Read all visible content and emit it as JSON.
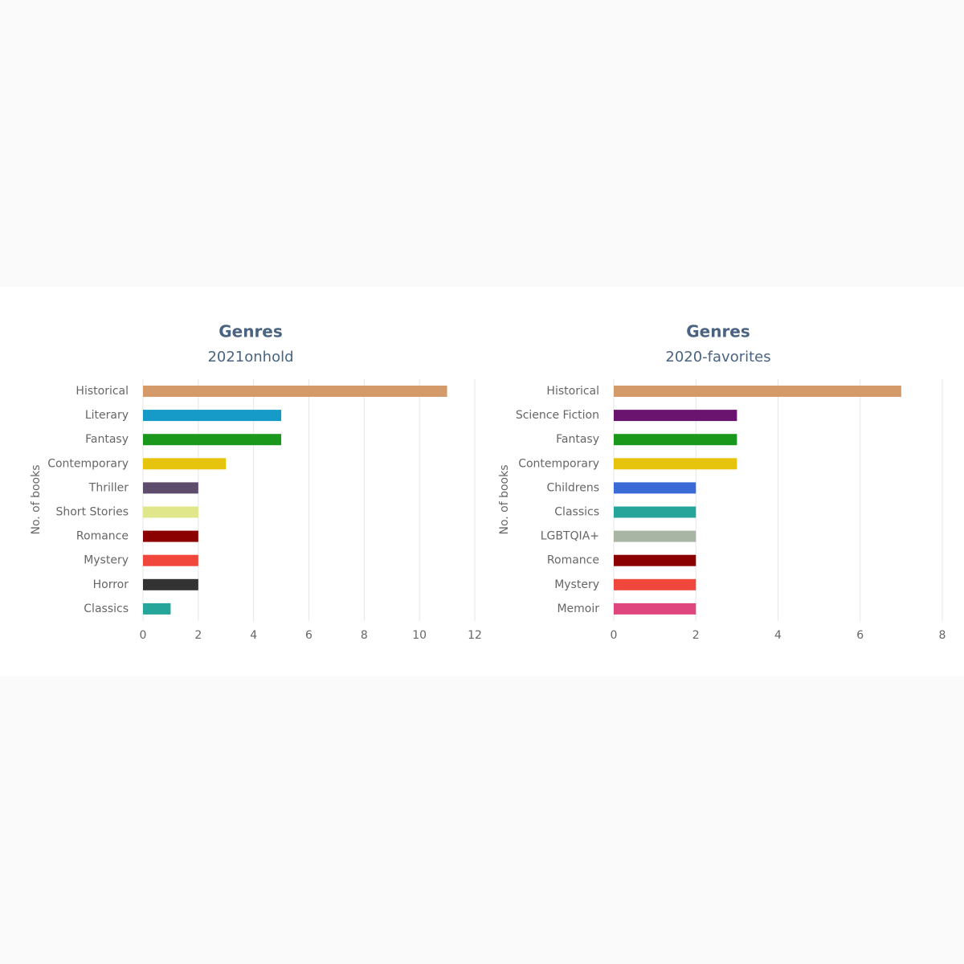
{
  "chart_data": [
    {
      "type": "bar",
      "orientation": "horizontal",
      "title": "Genres",
      "subtitle": "2021onhold",
      "y_label": "No. of books",
      "categories": [
        "Historical",
        "Literary",
        "Fantasy",
        "Contemporary",
        "Thriller",
        "Short Stories",
        "Romance",
        "Mystery",
        "Horror",
        "Classics"
      ],
      "values": [
        11,
        5,
        5,
        3,
        2,
        2,
        2,
        2,
        2,
        1
      ],
      "colors": [
        "#d49a6a",
        "#169bc8",
        "#1a981c",
        "#e6c30c",
        "#5e4c6c",
        "#e0e68a",
        "#8b0000",
        "#f0463c",
        "#333333",
        "#26a69a"
      ],
      "xlim": [
        0,
        12
      ],
      "xticks": [
        0,
        2,
        4,
        6,
        8,
        10,
        12
      ],
      "grid": true
    },
    {
      "type": "bar",
      "orientation": "horizontal",
      "title": "Genres",
      "subtitle": "2020-favorites",
      "y_label": "No. of books",
      "categories": [
        "Historical",
        "Science Fiction",
        "Fantasy",
        "Contemporary",
        "Childrens",
        "Classics",
        "LGBTQIA+",
        "Romance",
        "Mystery",
        "Memoir"
      ],
      "values": [
        7,
        3,
        3,
        3,
        2,
        2,
        2,
        2,
        2,
        2
      ],
      "colors": [
        "#d49a6a",
        "#6a1470",
        "#1a981c",
        "#e6c30c",
        "#3a6ad6",
        "#26a69a",
        "#a8b4a4",
        "#8b0000",
        "#f0463c",
        "#e0467e"
      ],
      "xlim": [
        0,
        8
      ],
      "xticks": [
        0,
        2,
        4,
        6,
        8
      ],
      "grid": true
    }
  ]
}
